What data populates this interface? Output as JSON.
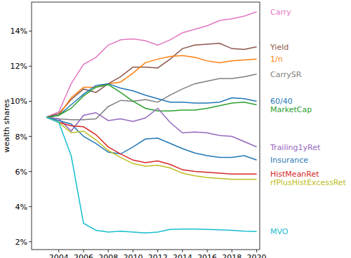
{
  "chart_data": {
    "type": "line",
    "y_label": "wealth shares",
    "x": [
      2003,
      2004,
      2005,
      2006,
      2007,
      2008,
      2009,
      2010,
      2011,
      2012,
      2013,
      2014,
      2015,
      2016,
      2017,
      2018,
      2019,
      2020
    ],
    "xlim": [
      2001.8,
      2020.25
    ],
    "xticks": [
      2004,
      2006,
      2008,
      2010,
      2012,
      2014,
      2016,
      2018,
      2020
    ],
    "ylim": [
      1.55,
      15.65
    ],
    "yticks": [
      {
        "value": 2,
        "label": "2%"
      },
      {
        "value": 4,
        "label": "4%"
      },
      {
        "value": 6,
        "label": "6%"
      },
      {
        "value": 8,
        "label": "8%"
      },
      {
        "value": 10,
        "label": "10%"
      },
      {
        "value": 12,
        "label": "12%"
      },
      {
        "value": 14,
        "label": "14%"
      }
    ],
    "grid": false,
    "series": [
      {
        "name": "Carry",
        "color": "#e377c2",
        "values": [
          9.09,
          9.4,
          11.0,
          12.1,
          12.5,
          13.2,
          13.5,
          13.55,
          13.45,
          13.2,
          13.5,
          13.9,
          14.1,
          14.3,
          14.6,
          14.7,
          14.85,
          15.1
        ]
      },
      {
        "name": "Yield",
        "color": "#8c564b",
        "values": [
          9.09,
          9.3,
          10.1,
          10.7,
          10.5,
          11.0,
          11.4,
          11.95,
          11.95,
          11.9,
          12.4,
          13.0,
          13.2,
          13.25,
          13.3,
          13.0,
          12.95,
          13.1
        ]
      },
      {
        "name": "1/n",
        "color": "#ff7f0e",
        "values": [
          9.09,
          9.2,
          10.2,
          10.8,
          10.8,
          11.0,
          11.1,
          11.6,
          12.2,
          12.4,
          12.55,
          12.6,
          12.5,
          12.3,
          12.2,
          12.3,
          12.35,
          12.4
        ]
      },
      {
        "name": "CarrySR",
        "color": "#7f7f7f",
        "values": [
          9.09,
          9.0,
          8.95,
          8.95,
          9.0,
          9.7,
          10.05,
          10.0,
          10.1,
          9.95,
          10.35,
          10.7,
          11.0,
          11.15,
          11.3,
          11.3,
          11.4,
          11.55
        ]
      },
      {
        "name": "60/40",
        "color": "#1f77b4",
        "values": [
          9.09,
          9.2,
          9.8,
          10.4,
          10.9,
          11.0,
          10.75,
          10.6,
          10.35,
          10.15,
          9.95,
          9.95,
          9.9,
          9.9,
          9.95,
          10.2,
          10.15,
          10.0
        ]
      },
      {
        "name": "MarketCap",
        "color": "#2ca02c",
        "values": [
          9.09,
          9.2,
          9.6,
          10.3,
          10.8,
          10.95,
          10.5,
          10.0,
          9.6,
          9.45,
          9.45,
          9.5,
          9.5,
          9.6,
          9.75,
          9.9,
          9.95,
          9.8
        ]
      },
      {
        "name": "Trailing1yRet",
        "color": "#9467bd",
        "values": [
          9.09,
          9.0,
          8.3,
          9.2,
          9.35,
          8.9,
          9.0,
          8.85,
          9.05,
          9.6,
          8.8,
          8.2,
          8.25,
          8.2,
          8.05,
          8.0,
          7.7,
          7.4
        ]
      },
      {
        "name": "Insurance",
        "color": "#1f77b4",
        "values": [
          9.09,
          8.9,
          8.7,
          8.0,
          7.6,
          7.1,
          7.0,
          7.4,
          7.85,
          7.9,
          7.6,
          7.3,
          7.05,
          6.9,
          6.8,
          6.8,
          6.9,
          6.65
        ]
      },
      {
        "name": "HistMeanRet",
        "color": "#d62728",
        "values": [
          9.09,
          8.8,
          8.6,
          8.55,
          8.1,
          7.4,
          7.0,
          6.65,
          6.5,
          6.6,
          6.4,
          6.1,
          6.0,
          5.95,
          5.9,
          5.85,
          5.85,
          5.85
        ]
      },
      {
        "name": "rfPlusHistExcessRet",
        "color": "#bcbd22",
        "values": [
          9.09,
          8.8,
          8.2,
          8.3,
          7.8,
          7.2,
          6.8,
          6.45,
          6.3,
          6.35,
          6.2,
          5.9,
          5.75,
          5.65,
          5.6,
          5.55,
          5.55,
          5.55
        ]
      },
      {
        "name": "MVO",
        "color": "#17becf",
        "values": [
          9.09,
          8.8,
          6.9,
          3.05,
          2.65,
          2.55,
          2.6,
          2.55,
          2.5,
          2.55,
          2.7,
          2.72,
          2.72,
          2.7,
          2.68,
          2.65,
          2.6,
          2.58
        ]
      }
    ]
  }
}
